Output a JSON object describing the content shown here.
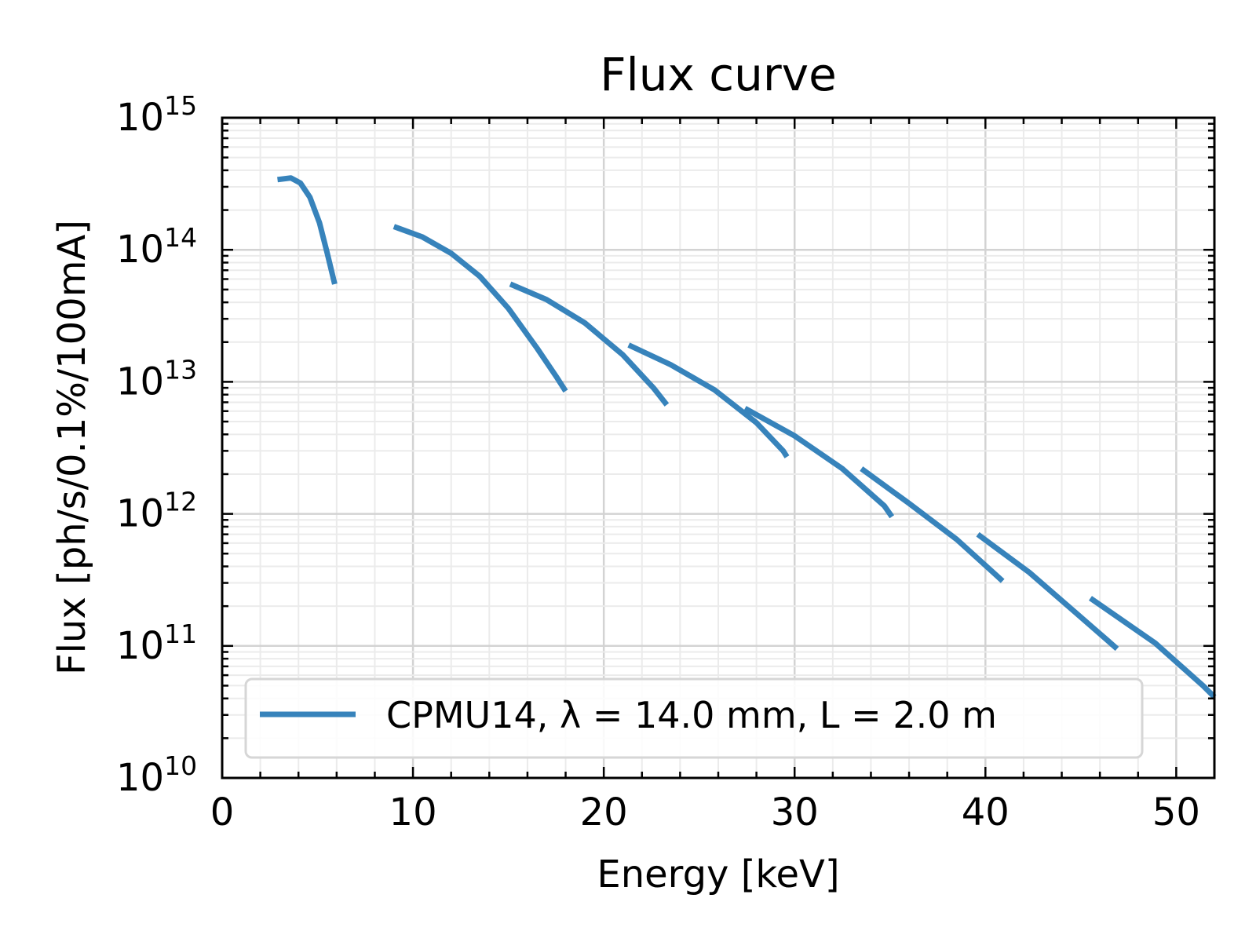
{
  "chart_data": {
    "type": "line",
    "title": "Flux curve",
    "xlabel": "Energy [keV]",
    "ylabel": "Flux [ph/s/0.1%/100mA]",
    "xlim": [
      0,
      52
    ],
    "ylim": [
      10000000000.0,
      1000000000000000.0
    ],
    "yscale": "log",
    "grid": true,
    "legend_position": "lower left",
    "x_ticks": [
      0,
      10,
      20,
      30,
      40,
      50
    ],
    "y_ticks": [
      {
        "base": "10",
        "exp": "10"
      },
      {
        "base": "10",
        "exp": "11"
      },
      {
        "base": "10",
        "exp": "12"
      },
      {
        "base": "10",
        "exp": "13"
      },
      {
        "base": "10",
        "exp": "14"
      },
      {
        "base": "10",
        "exp": "15"
      }
    ],
    "series": [
      {
        "name": "CPMU14, λ = 14.0 mm, L = 2.0 m",
        "color": "#3783bb",
        "segments": [
          [
            [
              2.9,
              340000000000000.0
            ],
            [
              3.6,
              350000000000000.0
            ],
            [
              4.1,
              320000000000000.0
            ],
            [
              4.6,
              250000000000000.0
            ],
            [
              5.1,
              160000000000000.0
            ],
            [
              5.5,
              95000000000000.0
            ],
            [
              5.9,
              55000000000000.0
            ]
          ],
          [
            [
              9.0,
              150000000000000.0
            ],
            [
              10.5,
              125000000000000.0
            ],
            [
              12.0,
              94000000000000.0
            ],
            [
              13.5,
              63000000000000.0
            ],
            [
              15.0,
              36000000000000.0
            ],
            [
              16.5,
              18000000000000.0
            ],
            [
              17.5,
              11000000000000.0
            ],
            [
              18.0,
              8500000000000.0
            ]
          ],
          [
            [
              15.1,
              55000000000000.0
            ],
            [
              17.0,
              42000000000000.0
            ],
            [
              19.0,
              28000000000000.0
            ],
            [
              21.0,
              16000000000000.0
            ],
            [
              22.6,
              9000000000000.0
            ],
            [
              23.3,
              6700000000000.0
            ]
          ],
          [
            [
              21.3,
              19000000000000.0
            ],
            [
              23.5,
              13500000000000.0
            ],
            [
              25.8,
              8700000000000.0
            ],
            [
              28.0,
              4900000000000.0
            ],
            [
              29.4,
              3000000000000.0
            ],
            [
              29.6,
              2700000000000.0
            ]
          ],
          [
            [
              27.4,
              6300000000000.0
            ],
            [
              30.0,
              3900000000000.0
            ],
            [
              32.5,
              2200000000000.0
            ],
            [
              34.7,
              1150000000000.0
            ],
            [
              35.1,
              950000000000.0
            ]
          ],
          [
            [
              33.5,
              2200000000000.0
            ],
            [
              36.0,
              1200000000000.0
            ],
            [
              38.5,
              640000000000.0
            ],
            [
              40.5,
              350000000000.0
            ],
            [
              40.9,
              310000000000.0
            ]
          ],
          [
            [
              39.6,
              700000000000.0
            ],
            [
              42.3,
              360000000000.0
            ],
            [
              44.7,
              180000000000.0
            ],
            [
              46.4,
              110000000000.0
            ],
            [
              46.9,
              95000000000.0
            ]
          ],
          [
            [
              45.5,
              230000000000.0
            ],
            [
              48.9,
              105000000000.0
            ],
            [
              51.4,
              50000000000.0
            ],
            [
              52.0,
              41000000000.0
            ]
          ]
        ]
      }
    ]
  }
}
